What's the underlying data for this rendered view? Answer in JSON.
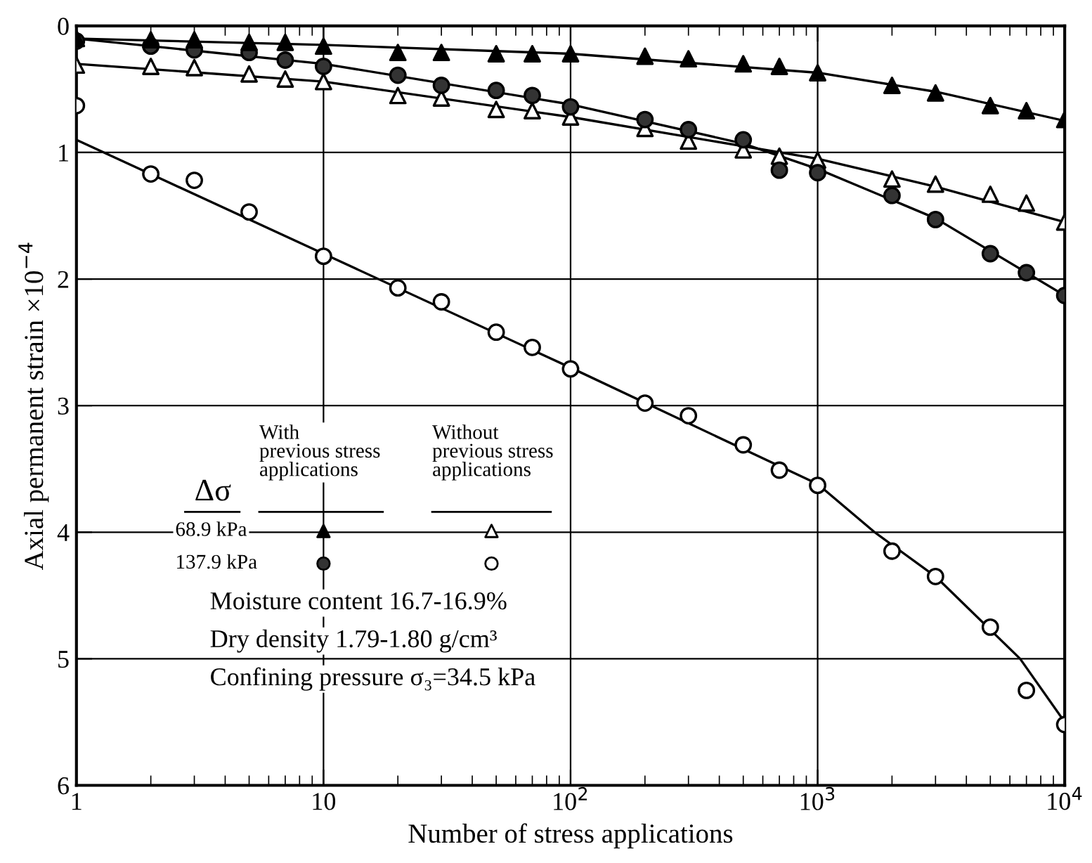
{
  "chart_data": {
    "type": "scatter",
    "xlabel": "Number of stress applications",
    "ylabel": "Axial permanent strain ×10$^{−4}$",
    "log": "x",
    "xlim": [
      1,
      10000
    ],
    "xticks": [
      1,
      10,
      {
        "value": 100,
        "label": "10$^{2}$"
      },
      {
        "value": 1000,
        "label": "10$^{3}$"
      },
      {
        "value": 10000,
        "label": "10$^{4}$"
      }
    ],
    "ylim": [
      6,
      0
    ],
    "yticks": [
      0,
      1,
      2,
      3,
      4,
      5,
      6
    ],
    "grid": true,
    "series": [
      {
        "marker": "triangle",
        "color": "#000000",
        "x": [
          1,
          2,
          3,
          5,
          7,
          10,
          20,
          30,
          50,
          70,
          100,
          200,
          300,
          500,
          700,
          1000,
          2000,
          3000,
          5000,
          7000,
          10000
        ],
        "values": [
          0.1,
          0.11,
          0.11,
          0.13,
          0.13,
          0.16,
          0.21,
          0.21,
          0.22,
          0.22,
          0.22,
          0.24,
          0.26,
          0.3,
          0.32,
          0.37,
          0.47,
          0.53,
          0.63,
          0.67,
          0.74
        ]
      },
      {
        "marker": "circle",
        "color": "#333333",
        "x": [
          1,
          2,
          3,
          5,
          7,
          10,
          20,
          30,
          50,
          70,
          100,
          200,
          300,
          500,
          700,
          1000,
          2000,
          3000,
          5000,
          7000,
          10000
        ],
        "values": [
          0.12,
          0.16,
          0.19,
          0.21,
          0.27,
          0.32,
          0.39,
          0.47,
          0.51,
          0.55,
          0.64,
          0.74,
          0.82,
          0.9,
          1.14,
          1.16,
          1.34,
          1.53,
          1.8,
          1.95,
          2.13
        ]
      },
      {
        "marker": "triangle",
        "color": "#ffffff",
        "x": [
          1,
          2,
          3,
          5,
          7,
          10,
          20,
          30,
          50,
          70,
          100,
          200,
          300,
          500,
          700,
          1000,
          2000,
          3000,
          5000,
          7000,
          10000
        ],
        "values": [
          0.31,
          0.32,
          0.33,
          0.38,
          0.42,
          0.44,
          0.55,
          0.57,
          0.66,
          0.67,
          0.72,
          0.81,
          0.91,
          0.98,
          1.03,
          1.06,
          1.21,
          1.25,
          1.33,
          1.4,
          1.55
        ]
      },
      {
        "marker": "circle",
        "color": "#ffffff",
        "x": [
          1,
          2,
          3,
          5,
          10,
          20,
          30,
          50,
          70,
          100,
          200,
          300,
          500,
          700,
          1000,
          2000,
          3000,
          5000,
          7000,
          10000
        ],
        "values": [
          0.63,
          1.17,
          1.22,
          1.47,
          1.82,
          2.07,
          2.18,
          2.42,
          2.54,
          2.71,
          2.98,
          3.08,
          3.31,
          3.51,
          3.63,
          4.15,
          4.35,
          4.75,
          5.25,
          5.52
        ]
      },
      {
        "type": "line",
        "marker": "none",
        "color": "#000000",
        "x": [
          1,
          10,
          100,
          1000,
          3000,
          10000
        ],
        "values": [
          0.1,
          0.15,
          0.22,
          0.37,
          0.52,
          0.75
        ]
      },
      {
        "type": "line",
        "marker": "none",
        "color": "#000000",
        "x": [
          1,
          10,
          100,
          500,
          1000,
          3000,
          10000
        ],
        "values": [
          0.1,
          0.3,
          0.62,
          0.93,
          1.13,
          1.52,
          2.13
        ]
      },
      {
        "type": "line",
        "marker": "none",
        "color": "#000000",
        "x": [
          1,
          10,
          100,
          1000,
          3000,
          10000
        ],
        "values": [
          0.3,
          0.44,
          0.72,
          1.05,
          1.27,
          1.55
        ]
      },
      {
        "type": "line",
        "marker": "none",
        "color": "#000000",
        "x": [
          1,
          10,
          100,
          1000,
          1700,
          3000,
          6600,
          10000
        ],
        "values": [
          0.9,
          1.8,
          2.7,
          3.62,
          4.0,
          4.35,
          5.0,
          5.5
        ]
      }
    ],
    "annotations": [
      "Δσ",
      "With\nprevious stress\napplications",
      "Without\nprevious stress\napplications",
      "68.9 kPa",
      "137.9 kPa",
      "Moisture content 16.7-16.9%",
      "Dry density 1.79-1.80 g/cm³",
      "Confining pressure σ₃=34.5 kPa"
    ]
  }
}
